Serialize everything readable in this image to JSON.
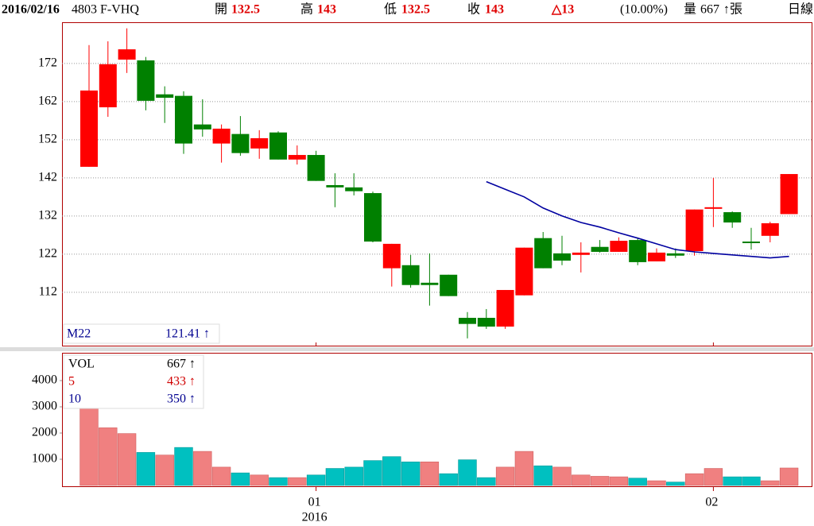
{
  "header": {
    "date": "2016/02/16",
    "symbol": "4803 F-VHQ",
    "open_label": "開",
    "open": "132.5",
    "high_label": "高",
    "high": "143",
    "low_label": "低",
    "low": "132.5",
    "close_label": "收",
    "close": "143",
    "change": "△13",
    "change_pct": "(10.00%)",
    "volume_label": "量",
    "volume": "667",
    "volume_unit": "↑張",
    "period": "日線"
  },
  "chart_data": [
    {
      "type": "candlestick",
      "open": [
        144.9,
        160.5,
        173,
        172.8,
        163.9,
        163.5,
        156,
        151,
        153.5,
        149.7,
        153.9,
        146.8,
        148,
        140.1,
        139.5,
        138,
        118.3,
        119.1,
        114.5,
        116.6,
        105.3,
        105.3,
        103,
        111.2,
        126.2,
        122.2,
        121.8,
        123.9,
        122.6,
        125.7,
        120.1,
        122.2,
        122.8,
        133.9,
        133,
        125.3,
        126.8,
        132.5
      ],
      "high": [
        176.8,
        177.8,
        181.2,
        173.7,
        166,
        164.7,
        162.6,
        156,
        158.2,
        154.5,
        154.2,
        150.5,
        149.1,
        143.2,
        143.2,
        138.4,
        124.7,
        121.8,
        122.2,
        116.6,
        106.8,
        107.6,
        112.6,
        123.7,
        127.8,
        126.8,
        125.1,
        125.7,
        126.4,
        126.1,
        123.5,
        123.5,
        133.7,
        142,
        133.2,
        128.9,
        130.5,
        143
      ],
      "low": [
        144.9,
        158,
        169.5,
        159.7,
        156.4,
        148.3,
        152.8,
        146,
        147.8,
        147,
        146.8,
        145.5,
        141.2,
        134.3,
        137.4,
        125.1,
        113.5,
        113.2,
        108.5,
        111,
        99.9,
        102.4,
        102.4,
        111.2,
        118.3,
        119.1,
        117.2,
        122.4,
        122.6,
        119.1,
        120.1,
        121,
        121.6,
        129.1,
        128.9,
        123.2,
        125.1,
        132.5
      ],
      "close": [
        164.9,
        171.8,
        175.7,
        162.2,
        163,
        151,
        154.7,
        154.9,
        148.5,
        152.4,
        146.8,
        148,
        141.2,
        139.5,
        138.5,
        125.3,
        124.7,
        113.9,
        113.9,
        111,
        103.7,
        103,
        112.6,
        123.7,
        118.3,
        120.3,
        122.4,
        122.6,
        125.5,
        119.9,
        122.4,
        121.6,
        133.7,
        134.3,
        130.3,
        125.1,
        130.1,
        143
      ],
      "up_color": "#ff0000",
      "down_color": "#008000",
      "series": [
        {
          "name": "M22",
          "color": "#0000a0",
          "values": [
            null,
            null,
            null,
            null,
            null,
            null,
            null,
            null,
            null,
            null,
            null,
            null,
            null,
            null,
            null,
            null,
            null,
            null,
            null,
            null,
            null,
            141,
            139,
            137,
            134.1,
            132,
            130.3,
            129.1,
            127.6,
            126.2,
            124.7,
            123.2,
            122.6,
            122.2,
            121.8,
            121.4,
            121,
            121.41
          ]
        }
      ],
      "ma_value_label": "121.41 ↑",
      "ylim": [
        97.8,
        182.8
      ],
      "yticks": [
        112,
        122,
        132,
        142,
        152,
        162,
        172
      ],
      "grid": true
    },
    {
      "type": "bar",
      "categories": [
        null,
        null,
        null,
        null,
        null,
        null,
        null,
        null,
        null,
        null,
        null,
        null,
        "01",
        null,
        null,
        null,
        null,
        null,
        null,
        null,
        null,
        null,
        null,
        null,
        null,
        null,
        null,
        null,
        null,
        null,
        null,
        null,
        null,
        "02",
        null,
        null,
        null,
        null
      ],
      "year_label": "2016",
      "values": [
        2950,
        2200,
        1980,
        1260,
        1160,
        1450,
        1300,
        700,
        480,
        400,
        300,
        300,
        400,
        650,
        700,
        950,
        1100,
        900,
        900,
        450,
        980,
        300,
        700,
        1300,
        750,
        700,
        400,
        350,
        330,
        280,
        180,
        130,
        450,
        650,
        330,
        330,
        180,
        667
      ],
      "colors": [
        "#f08080",
        "#f08080",
        "#f08080",
        "#00c0c0",
        "#f08080",
        "#00c0c0",
        "#f08080",
        "#f08080",
        "#00c0c0",
        "#f08080",
        "#00c0c0",
        "#f08080",
        "#00c0c0",
        "#00c0c0",
        "#00c0c0",
        "#00c0c0",
        "#00c0c0",
        "#00c0c0",
        "#f08080",
        "#00c0c0",
        "#00c0c0",
        "#00c0c0",
        "#f08080",
        "#f08080",
        "#00c0c0",
        "#f08080",
        "#f08080",
        "#f08080",
        "#f08080",
        "#00c0c0",
        "#f08080",
        "#00c0c0",
        "#f08080",
        "#f08080",
        "#00c0c0",
        "#00c0c0",
        "#f08080",
        "#f08080"
      ],
      "legend": [
        {
          "name": "VOL",
          "value": "667 ↑",
          "color": "#000000"
        },
        {
          "name": "5",
          "value": "433 ↑",
          "color": "#d00000"
        },
        {
          "name": "10",
          "value": "350 ↑",
          "color": "#000090"
        }
      ],
      "ylim": [
        0,
        5060
      ],
      "yticks": [
        1000,
        2000,
        3000,
        4000
      ]
    }
  ]
}
